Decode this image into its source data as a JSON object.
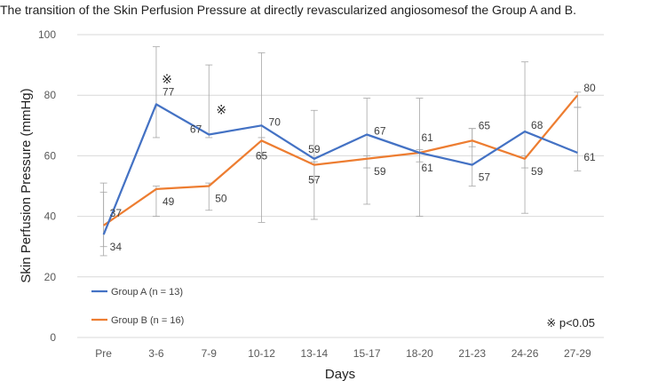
{
  "chart_data": {
    "type": "line",
    "title": "The transition of the Skin Perfusion Pressure at directly revascularized angiosomesof the Group A and B.",
    "xlabel": "Days",
    "ylabel": "Skin Perfusion Pressure (mmHg)",
    "ylim": [
      0,
      100
    ],
    "yticks": [
      0,
      20,
      40,
      60,
      80,
      100
    ],
    "grid": true,
    "categories": [
      "Pre",
      "3-6",
      "7-9",
      "10-12",
      "13-14",
      "15-17",
      "18-20",
      "21-23",
      "24-26",
      "27-29"
    ],
    "series": [
      {
        "name": "Group A (n = 13)",
        "color": "#4472C4",
        "values": [
          34,
          77,
          67,
          70,
          59,
          67,
          61,
          57,
          68,
          61
        ],
        "error_low": [
          27,
          66,
          66,
          38,
          39,
          44,
          40,
          50,
          41,
          55
        ],
        "error_high": [
          51,
          96,
          90,
          94,
          75,
          79,
          79,
          69,
          91,
          76
        ]
      },
      {
        "name": "Group B (n = 16)",
        "color": "#ED7D31",
        "values": [
          37,
          49,
          50,
          65,
          57,
          59,
          61,
          65,
          59,
          80
        ],
        "error_low": [
          30,
          40,
          42,
          60,
          52,
          56,
          58,
          63,
          56,
          76
        ],
        "error_high": [
          48,
          50,
          51,
          66,
          58,
          60,
          62,
          69,
          60,
          81
        ]
      }
    ],
    "significance_marks": [
      {
        "category": "3-6",
        "y": 85,
        "symbol": "※"
      },
      {
        "category": "7-9",
        "y": 75,
        "symbol": "※"
      }
    ],
    "annotation": "※ p<0.05",
    "legend_position": "bottom-left"
  }
}
